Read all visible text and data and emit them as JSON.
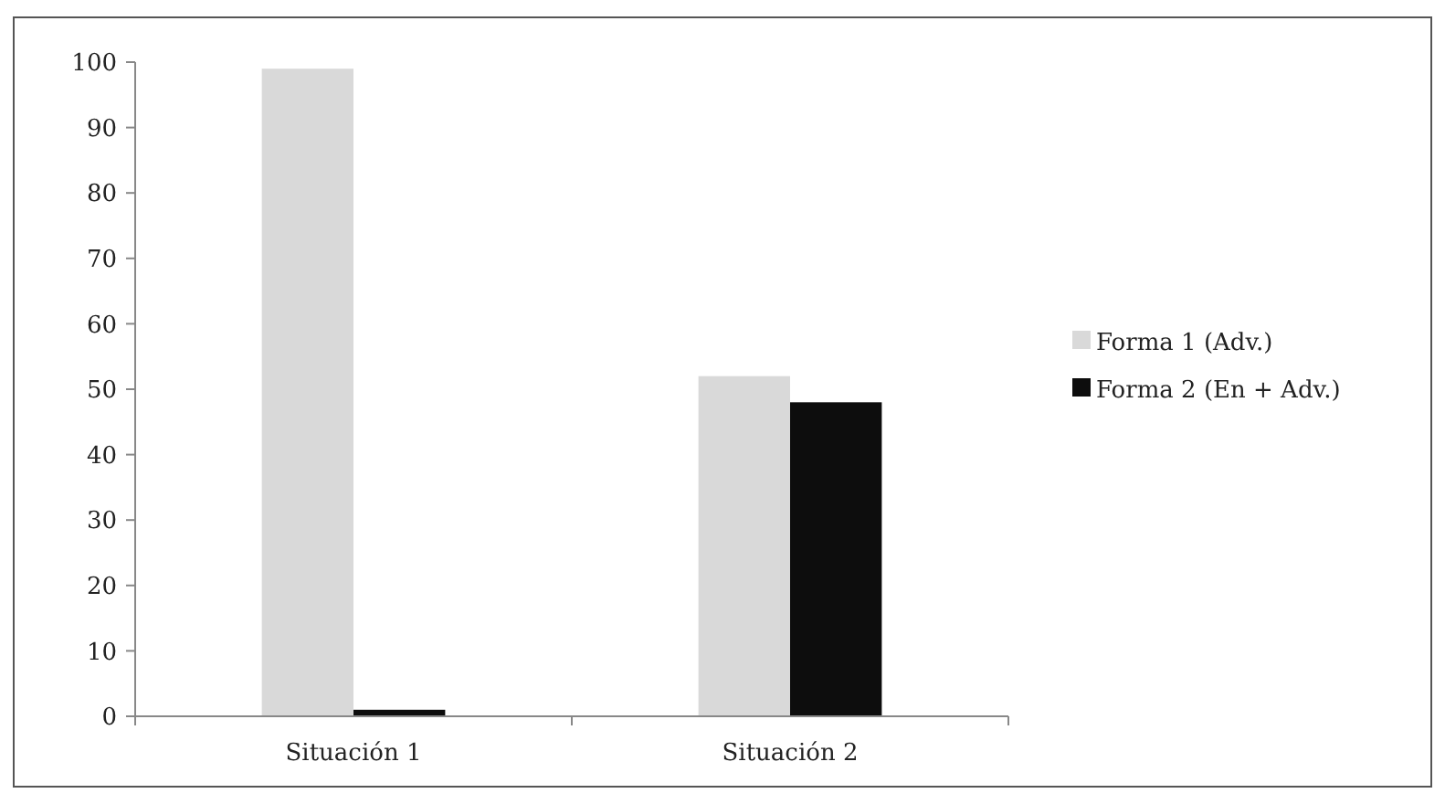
{
  "chart_data": {
    "type": "bar",
    "categories": [
      "Situación 1",
      "Situación 2"
    ],
    "series": [
      {
        "name": "Forma 1 (Adv.)",
        "color": "#d9d9d9",
        "values": [
          99,
          52
        ]
      },
      {
        "name": "Forma 2 (En + Adv.)",
        "color": "#0d0d0d",
        "values": [
          1,
          48
        ]
      }
    ],
    "ylim": [
      0,
      100
    ],
    "yticks": [
      0,
      10,
      20,
      30,
      40,
      50,
      60,
      70,
      80,
      90,
      100
    ],
    "grid": false,
    "legend": "right"
  }
}
